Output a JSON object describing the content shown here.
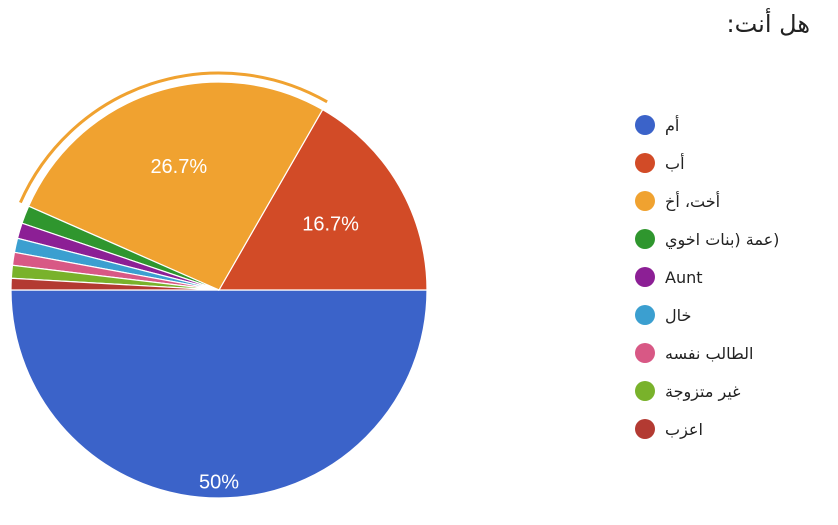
{
  "title": "هل أنت:",
  "chart_data": {
    "type": "pie",
    "slices": [
      {
        "label": "أم",
        "value": 50,
        "color": "#3b63c9",
        "display": "50%"
      },
      {
        "label": "أب",
        "value": 16.7,
        "color": "#d24b27",
        "display": "16.7%"
      },
      {
        "label": "أخت، أخ",
        "value": 26.7,
        "color": "#f0a230",
        "display": "26.7%"
      },
      {
        "label": "(عمة (بنات اخوي",
        "value": 1.4,
        "color": "#2f962e",
        "display": ""
      },
      {
        "label": "Aunt",
        "value": 1.2,
        "color": "#8c1f95",
        "display": ""
      },
      {
        "label": "خال",
        "value": 1.1,
        "color": "#3b9fd0",
        "display": ""
      },
      {
        "label": "الطالب نفسه",
        "value": 1.0,
        "color": "#d85885",
        "display": ""
      },
      {
        "label": "غير متزوجة",
        "value": 1.0,
        "color": "#79b22b",
        "display": ""
      },
      {
        "label": "اعزب",
        "value": 0.9,
        "color": "#b33a32",
        "display": ""
      }
    ],
    "start": "left (180°), counter-clockwise",
    "highlighted_slice": "أخت، أخ",
    "legend_position": "right"
  }
}
